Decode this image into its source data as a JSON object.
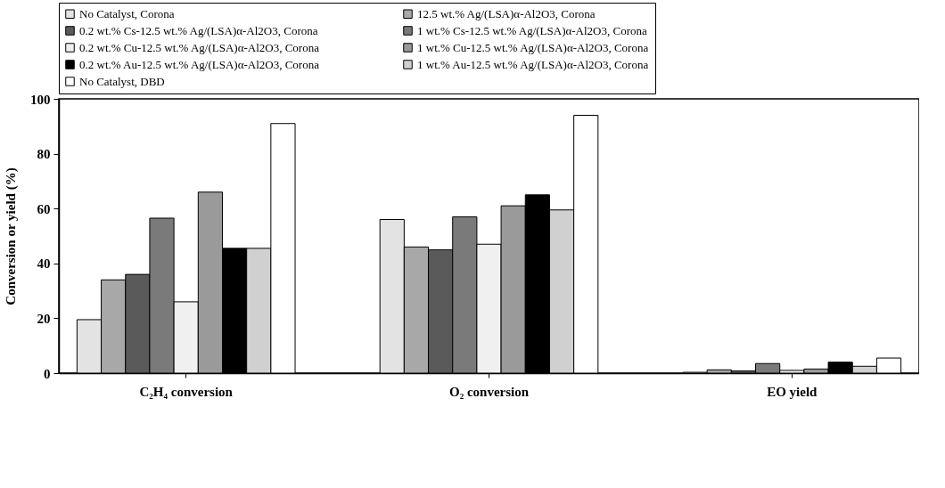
{
  "chart_data": {
    "type": "bar",
    "ylabel": "Conversion or yield (%)",
    "categories": [
      "C₂H₄ conversion",
      "O₂ conversion",
      "EO yield"
    ],
    "series": [
      {
        "name": "No Catalyst, Corona",
        "color": "#e3e3e3",
        "values": [
          19.5,
          56,
          0.3
        ]
      },
      {
        "name": "12.5 wt.% Ag/(LSA)α-Al2O3, Corona",
        "color": "#a8a8a8",
        "values": [
          34,
          46,
          1.2
        ]
      },
      {
        "name": "0.2 wt.% Cs-12.5 wt.% Ag/(LSA)α-Al2O3, Corona",
        "color": "#5a5a5a",
        "values": [
          36,
          45,
          0.8
        ]
      },
      {
        "name": "1 wt.% Cs-12.5 wt.% Ag/(LSA)α-Al2O3, Corona",
        "color": "#7a7a7a",
        "values": [
          56.5,
          57,
          3.5
        ]
      },
      {
        "name": "0.2 wt.% Cu-12.5 wt.% Ag/(LSA)α-Al2O3, Corona",
        "color": "#f0f0f0",
        "values": [
          26,
          47,
          1
        ]
      },
      {
        "name": "1 wt.% Cu-12.5 wt.% Ag/(LSA)α-Al2O3, Corona",
        "color": "#9a9a9a",
        "values": [
          66,
          61,
          1.5
        ]
      },
      {
        "name": "0.2 wt.% Au-12.5 wt.% Ag/(LSA)α-Al2O3, Corona",
        "color": "#000000",
        "values": [
          45.5,
          65,
          4
        ]
      },
      {
        "name": "1 wt.% Au-12.5 wt.% Ag/(LSA)α-Al2O3, Corona",
        "color": "#d0d0d0",
        "values": [
          45.5,
          59.5,
          2.5
        ]
      },
      {
        "name": "No Catalyst, DBD",
        "color": "#ffffff",
        "values": [
          91,
          94,
          5.5
        ]
      }
    ],
    "ylim": [
      0,
      100
    ],
    "yticks": [
      0,
      20,
      40,
      60,
      80,
      100
    ],
    "grid": false,
    "legend": "top"
  }
}
